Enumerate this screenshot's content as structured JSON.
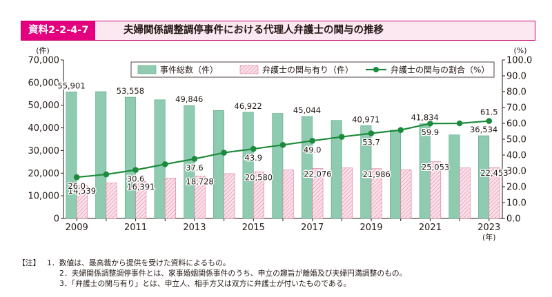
{
  "header": {
    "tag": "資料2-2-4-7",
    "title": "夫婦関係調整調停事件における代理人弁護士の関与の推移"
  },
  "chart_data": {
    "type": "bar",
    "x": [
      2009,
      2010,
      2011,
      2012,
      2013,
      2014,
      2015,
      2016,
      2017,
      2018,
      2019,
      2020,
      2021,
      2022,
      2023
    ],
    "x_tick_labels": [
      "2009",
      "2011",
      "2013",
      "2015",
      "2017",
      "2019",
      "2021",
      "2023"
    ],
    "x_unit": "(年)",
    "left_unit": "(件)",
    "right_unit": "(%)",
    "left_ylim": [
      0,
      70000
    ],
    "right_ylim": [
      0,
      100
    ],
    "left_ticks": [
      "0",
      "10,000",
      "20,000",
      "30,000",
      "40,000",
      "50,000",
      "60,000",
      "70,000"
    ],
    "right_ticks": [
      "0.0",
      "10.0",
      "20.0",
      "30.0",
      "40.0",
      "50.0",
      "60.0",
      "70.0",
      "80.0",
      "90.0",
      "100.0"
    ],
    "grid": false,
    "legend_position": "top",
    "series": [
      {
        "name": "事件総数（件）",
        "type": "bar",
        "axis": "left",
        "color": "#8fcbb0",
        "values": [
          55901,
          56000,
          53558,
          52400,
          49846,
          47700,
          46922,
          46400,
          45044,
          43300,
          40971,
          39000,
          41834,
          36900,
          36534
        ]
      },
      {
        "name": "弁護士の関与有り（件）",
        "type": "bar",
        "axis": "left",
        "color": "#f7c9d8",
        "pattern": "hatched",
        "values": [
          14539,
          15700,
          16391,
          17800,
          18728,
          19800,
          20580,
          21400,
          22076,
          22300,
          21986,
          21500,
          25053,
          22300,
          22453
        ]
      },
      {
        "name": "弁護士の関与の割合（%）",
        "type": "line",
        "axis": "right",
        "color": "#1b8a3a",
        "values": [
          26.0,
          27.8,
          30.6,
          34.2,
          37.6,
          41.5,
          43.9,
          46.4,
          49.0,
          51.5,
          53.7,
          55.8,
          59.9,
          60.0,
          61.5
        ]
      }
    ],
    "data_labels": {
      "total": [
        {
          "year": 2009,
          "text": "55,901"
        },
        {
          "year": 2011,
          "text": "53,558"
        },
        {
          "year": 2013,
          "text": "49,846"
        },
        {
          "year": 2015,
          "text": "46,922"
        },
        {
          "year": 2017,
          "text": "45,044"
        },
        {
          "year": 2019,
          "text": "40,971"
        },
        {
          "year": 2021,
          "text": "41,834"
        },
        {
          "year": 2023,
          "text": "36,534"
        }
      ],
      "lawyer": [
        {
          "year": 2009,
          "text": "14,539"
        },
        {
          "year": 2011,
          "text": "16,391"
        },
        {
          "year": 2013,
          "text": "18,728"
        },
        {
          "year": 2015,
          "text": "20,580"
        },
        {
          "year": 2017,
          "text": "22,076"
        },
        {
          "year": 2019,
          "text": "21,986"
        },
        {
          "year": 2021,
          "text": "25,053"
        },
        {
          "year": 2023,
          "text": "22,453"
        }
      ],
      "ratio": [
        {
          "year": 2009,
          "text": "26.0"
        },
        {
          "year": 2011,
          "text": "30.6"
        },
        {
          "year": 2013,
          "text": "37.6"
        },
        {
          "year": 2015,
          "text": "43.9"
        },
        {
          "year": 2017,
          "text": "49.0"
        },
        {
          "year": 2019,
          "text": "53.7"
        },
        {
          "year": 2021,
          "text": "59.9"
        },
        {
          "year": 2023,
          "text": "61.5"
        }
      ]
    }
  },
  "notes": {
    "head": "【注】",
    "items": [
      "1．数値は、最高裁から提供を受けた資料によるもの。",
      "2．夫婦関係調整調停事件とは、家事婚姻関係事件のうち、申立の趣旨が離婚及び夫婦円満調整のもの。",
      "3．「弁護士の関与有り」とは、申立人、相手方又は双方に弁護士が付いたものである。"
    ]
  }
}
